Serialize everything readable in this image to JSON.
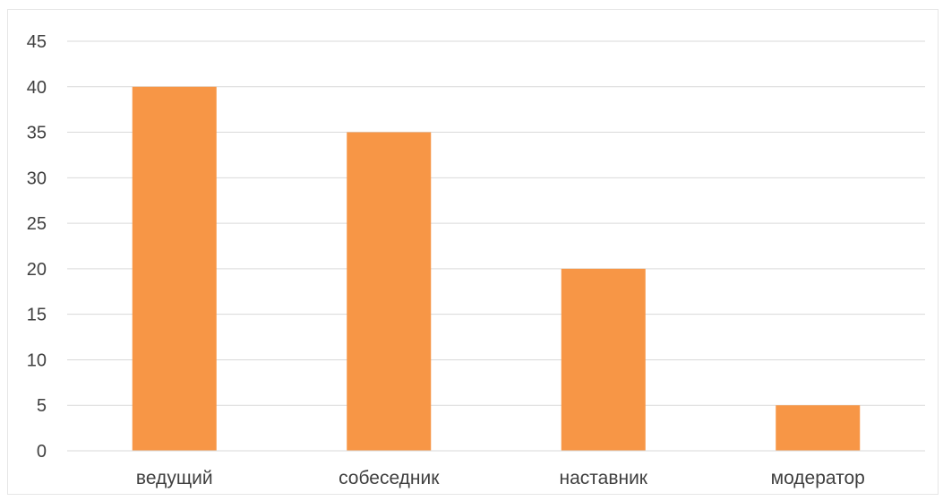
{
  "chart_data": {
    "type": "bar",
    "categories": [
      "ведущий",
      "собеседник",
      "наставник",
      "модератор"
    ],
    "values": [
      40,
      35,
      20,
      5
    ],
    "yticks": [
      "0",
      "5",
      "10",
      "15",
      "20",
      "25",
      "30",
      "35",
      "40",
      "45"
    ],
    "ylim": [
      0,
      45
    ],
    "grid": true,
    "legend": "none",
    "bar_color": "#f79646",
    "grid_color": "#d9d9d9",
    "text_color": "#404040"
  }
}
